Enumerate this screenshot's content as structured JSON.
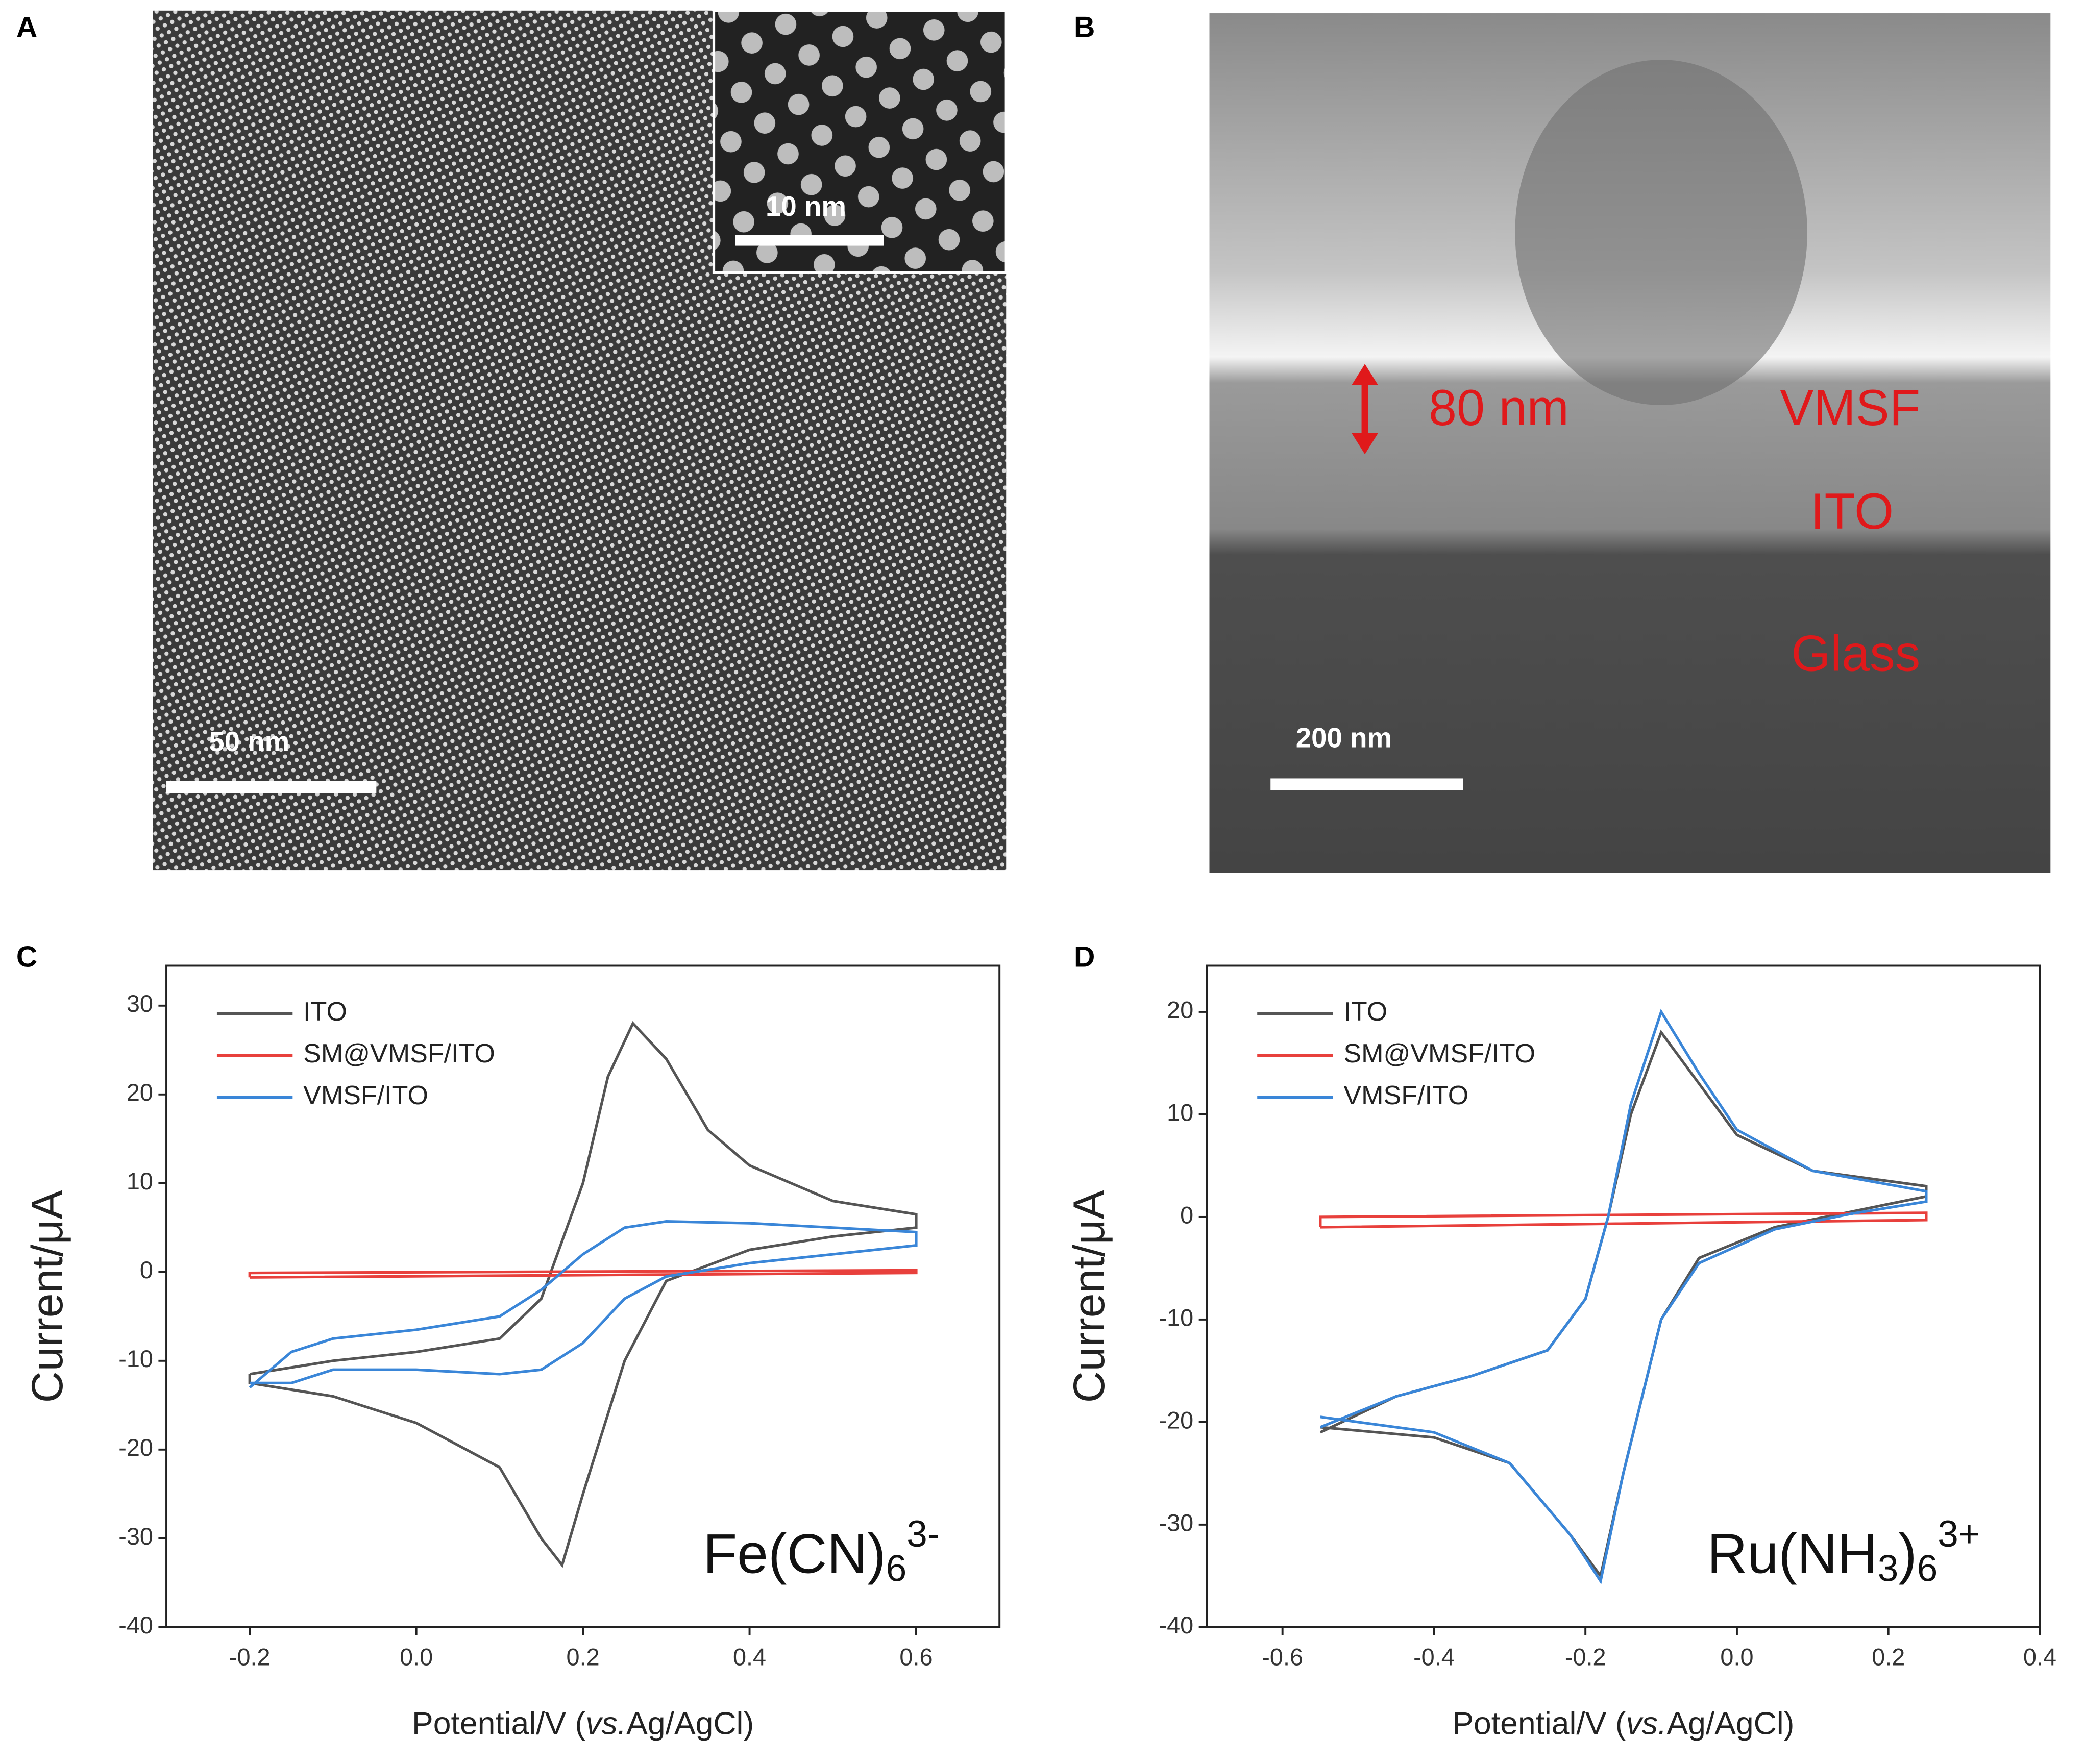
{
  "panels": {
    "A": {
      "letter": "A",
      "scale": "50 nm",
      "inset_scale": "10 nm"
    },
    "B": {
      "letter": "B",
      "scale": "200 nm",
      "thickness": "80 nm",
      "layers": [
        "VMSF",
        "ITO",
        "Glass"
      ]
    },
    "C": {
      "letter": "C"
    },
    "D": {
      "letter": "D"
    }
  },
  "chart_data": [
    {
      "type": "line",
      "ylabel": "Current/μA",
      "xlabel": [
        {
          "text": "Potential/V (",
          "italic": false
        },
        {
          "text": "vs.",
          "italic": true
        },
        {
          "text": "Ag/AgCl)",
          "italic": false
        }
      ],
      "annotation": [
        {
          "text": "Fe(CN)",
          "shift": "base"
        },
        {
          "text": "6",
          "shift": "sub"
        },
        {
          "text": "3-",
          "shift": "sup"
        }
      ],
      "xlim": [
        -0.3,
        0.7
      ],
      "xticks": [
        -0.2,
        {
          "value": 0,
          "label": "0.0"
        },
        0.2,
        0.4,
        0.6
      ],
      "ylim": [
        -40,
        34.5
      ],
      "yticks": [
        -40,
        -30,
        -20,
        -10,
        0,
        10,
        20,
        30
      ],
      "legend": "upper left",
      "series": [
        {
          "name": "ITO",
          "color": "#555555",
          "x": [
            -0.2,
            -0.1,
            0.0,
            0.1,
            0.15,
            0.2,
            0.23,
            0.26,
            0.3,
            0.35,
            0.4,
            0.5,
            0.6,
            0.6,
            0.5,
            0.4,
            0.3,
            0.25,
            0.2,
            0.175,
            0.15,
            0.1,
            0.0,
            -0.1,
            -0.2,
            -0.2
          ],
          "values": [
            -11.5,
            -10,
            -9,
            -7.5,
            -3,
            10,
            22,
            28,
            24,
            16,
            12,
            8,
            6.5,
            5,
            4,
            2.5,
            -1,
            -10,
            -25,
            -33,
            -30,
            -22,
            -17,
            -14,
            -12.5,
            -11.5
          ]
        },
        {
          "name": "SM@VMSF/ITO",
          "color": "#e8403c",
          "x": [
            -0.2,
            0.6,
            0.6,
            -0.2,
            -0.2
          ],
          "values": [
            -0.6,
            -0.1,
            0.2,
            -0.1,
            -0.6
          ]
        },
        {
          "name": "VMSF/ITO",
          "color": "#3a86d8",
          "x": [
            -0.2,
            -0.15,
            -0.1,
            0.0,
            0.1,
            0.15,
            0.2,
            0.25,
            0.3,
            0.4,
            0.5,
            0.6,
            0.6,
            0.5,
            0.4,
            0.3,
            0.25,
            0.2,
            0.15,
            0.1,
            0.0,
            -0.1,
            -0.15,
            -0.2
          ],
          "values": [
            -13,
            -9,
            -7.5,
            -6.5,
            -5,
            -2,
            2,
            5,
            5.7,
            5.5,
            5,
            4.5,
            3,
            2,
            1,
            -0.5,
            -3,
            -8,
            -11,
            -11.5,
            -11,
            -11,
            -12.5,
            -12.5
          ]
        }
      ]
    },
    {
      "type": "line",
      "ylabel": "Current/μA",
      "xlabel": [
        {
          "text": "Potential/V (",
          "italic": false
        },
        {
          "text": "vs.",
          "italic": true
        },
        {
          "text": "Ag/AgCl)",
          "italic": false
        }
      ],
      "annotation": [
        {
          "text": "Ru(NH",
          "shift": "base"
        },
        {
          "text": "3",
          "shift": "sub"
        },
        {
          "text": ")",
          "shift": "base"
        },
        {
          "text": "6",
          "shift": "sub"
        },
        {
          "text": "3+",
          "shift": "sup"
        }
      ],
      "xlim": [
        -0.7,
        0.4
      ],
      "xticks": [
        -0.6,
        -0.4,
        -0.2,
        {
          "value": 0,
          "label": "0.0"
        },
        0.2,
        0.4
      ],
      "ylim": [
        -40,
        24.5
      ],
      "yticks": [
        -40,
        -30,
        -20,
        -10,
        0,
        10,
        20
      ],
      "legend": "upper left",
      "series": [
        {
          "name": "ITO",
          "color": "#555555",
          "x": [
            -0.55,
            -0.45,
            -0.35,
            -0.25,
            -0.2,
            -0.17,
            -0.14,
            -0.1,
            -0.05,
            0.0,
            0.1,
            0.25,
            0.25,
            0.15,
            0.05,
            -0.05,
            -0.1,
            -0.15,
            -0.18,
            -0.22,
            -0.3,
            -0.4,
            -0.55
          ],
          "values": [
            -21,
            -17.5,
            -15.5,
            -13,
            -8,
            0,
            10,
            18,
            13,
            8,
            4.5,
            3,
            2,
            0.5,
            -1,
            -4,
            -10,
            -25,
            -35,
            -31,
            -24,
            -21.5,
            -20.5
          ]
        },
        {
          "name": "SM@VMSF/ITO",
          "color": "#e8403c",
          "x": [
            -0.55,
            0.25,
            0.25,
            -0.55,
            -0.55
          ],
          "values": [
            -1,
            -0.3,
            0.4,
            0,
            -1
          ]
        },
        {
          "name": "VMSF/ITO",
          "color": "#3a86d8",
          "x": [
            -0.55,
            -0.45,
            -0.35,
            -0.25,
            -0.2,
            -0.17,
            -0.14,
            -0.1,
            -0.05,
            0.0,
            0.1,
            0.25,
            0.25,
            0.15,
            0.05,
            -0.05,
            -0.1,
            -0.15,
            -0.18,
            -0.22,
            -0.3,
            -0.4,
            -0.55
          ],
          "values": [
            -20.5,
            -17.5,
            -15.5,
            -13,
            -8,
            0,
            11,
            20,
            14,
            8.5,
            4.5,
            2.5,
            1.5,
            0.3,
            -1.2,
            -4.5,
            -10,
            -25,
            -35.5,
            -31,
            -24,
            -21,
            -19.5
          ]
        }
      ]
    }
  ]
}
